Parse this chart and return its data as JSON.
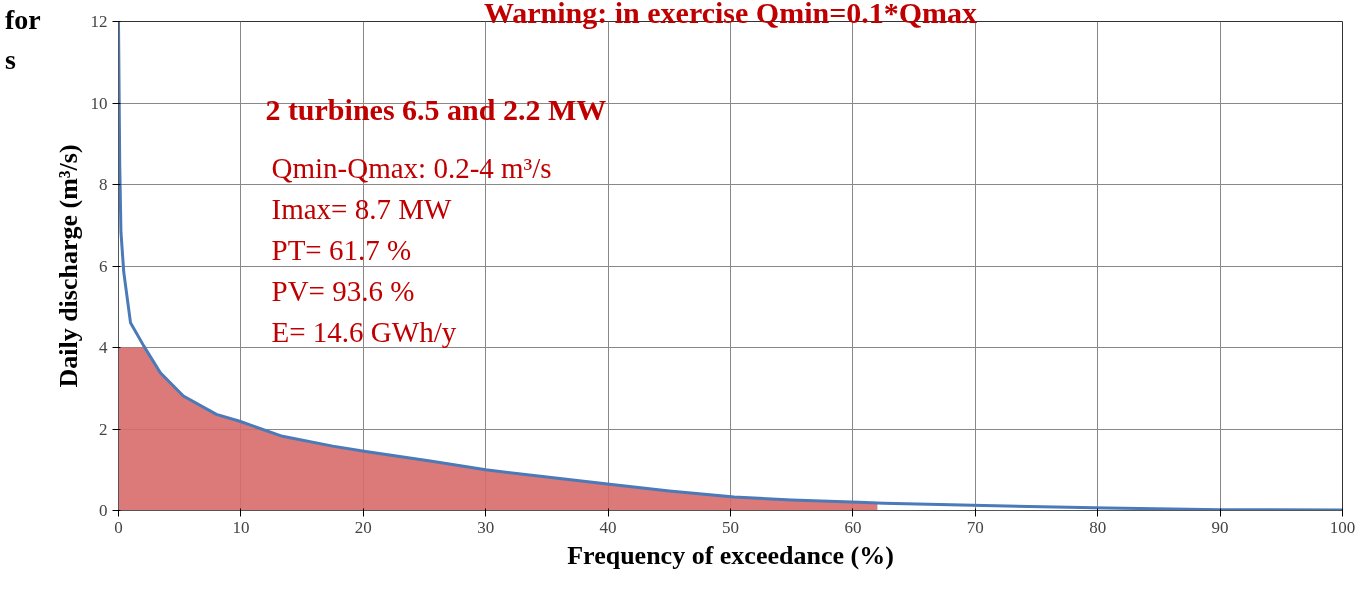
{
  "chart_data": {
    "type": "line",
    "title": "Warning: in exercise Qmin=0.1*Qmax",
    "xlabel": "Frequency of exceedance (%)",
    "ylabel": "Daily discharge (m³/s)",
    "series": [
      {
        "type": "area",
        "color": "#d86a6a",
        "x": [
          0,
          2.06,
          3.42,
          5.3,
          8.0,
          9.9,
          13.4,
          17.5,
          20.2,
          25.6,
          30.0,
          35,
          40.3,
          45,
          50.3,
          55,
          60.5,
          62.0
        ],
        "values": [
          4,
          4,
          3.38,
          2.81,
          2.36,
          2.19,
          1.82,
          1.58,
          1.45,
          1.21,
          1.0,
          0.82,
          0.64,
          0.48,
          0.33,
          0.26,
          0.2,
          0.19
        ]
      },
      {
        "type": "line",
        "color": "#4a7ab8",
        "x": [
          0,
          0.1,
          0.2,
          0.43,
          0.98,
          2.06,
          3.42,
          5.3,
          8.0,
          9.9,
          13.4,
          17.5,
          20.2,
          25.6,
          30.0,
          35,
          40.3,
          45,
          50.3,
          55,
          60.5,
          62.5,
          70.7,
          80.8,
          90,
          100
        ],
        "values": [
          12,
          8.5,
          6.83,
          5.85,
          4.61,
          4.04,
          3.38,
          2.81,
          2.36,
          2.19,
          1.82,
          1.58,
          1.45,
          1.21,
          1.0,
          0.82,
          0.64,
          0.48,
          0.33,
          0.26,
          0.2,
          0.18,
          0.12,
          0.06,
          0.02,
          0.01
        ]
      }
    ],
    "xlim": [
      0,
      100
    ],
    "ylim": [
      0,
      12
    ],
    "xticks": [
      0,
      10,
      20,
      30,
      40,
      50,
      60,
      70,
      80,
      90,
      100
    ],
    "yticks": [
      0,
      2,
      4,
      6,
      8,
      10,
      12
    ],
    "grid": true,
    "annotations": [
      "2 turbines 6.5 and 2.2 MW",
      "Qmin-Qmax: 0.2-4 m³/s",
      "Imax= 8.7 MW",
      "PT= 61.7 %",
      "PV= 93.6 %",
      "E= 14.6 GWh/y",
      "for",
      "s"
    ]
  }
}
